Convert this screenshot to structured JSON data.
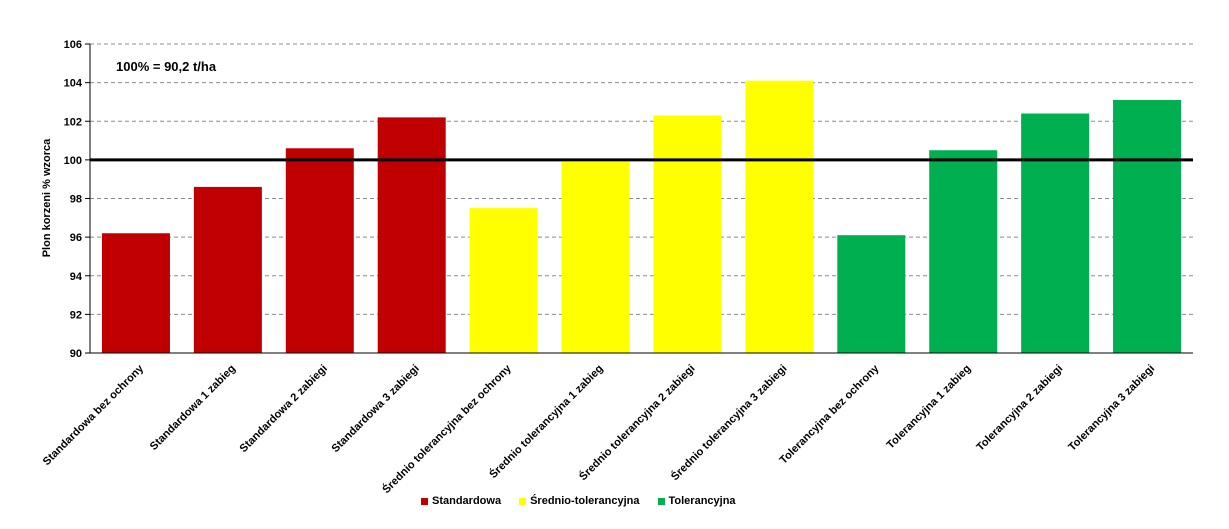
{
  "chart_data": {
    "type": "bar",
    "ylabel": "Plon korzeni % wzorca",
    "annotation": "100% = 90,2 t/ha",
    "ylim": [
      90,
      106
    ],
    "yticks": [
      90,
      92,
      94,
      96,
      98,
      100,
      102,
      104,
      106
    ],
    "reference_line": 100,
    "grid": true,
    "legend_position": "bottom",
    "categories": [
      "Standardowa bez ochrony",
      "Standardowa 1 zabieg",
      "Standardowa 2 zabiegi",
      "Standardowa 3 zabiegi",
      "Średnio tolerancyjna bez ochrony",
      "Średnio tolerancyjna 1 zabieg",
      "Średnio tolerancyjna 2 zabiegi",
      "Średnio tolerancyjna 3 zabiegi",
      "Tolerancyjna bez ochrony",
      "Tolerancyjna 1 zabieg",
      "Tolerancyjna 2 zabiegi",
      "Tolerancyjna 3 zabiegi"
    ],
    "values": [
      96.2,
      98.6,
      100.6,
      102.2,
      97.5,
      99.9,
      102.3,
      104.1,
      96.1,
      100.5,
      102.4,
      103.1
    ],
    "groups": [
      0,
      0,
      0,
      0,
      1,
      1,
      1,
      1,
      2,
      2,
      2,
      2
    ],
    "series": [
      {
        "name": "Standardowa",
        "color": "#C00000"
      },
      {
        "name": "Średnio-tolerancyjna",
        "color": "#FFFF00"
      },
      {
        "name": "Tolerancyjna",
        "color": "#00B050"
      }
    ]
  }
}
